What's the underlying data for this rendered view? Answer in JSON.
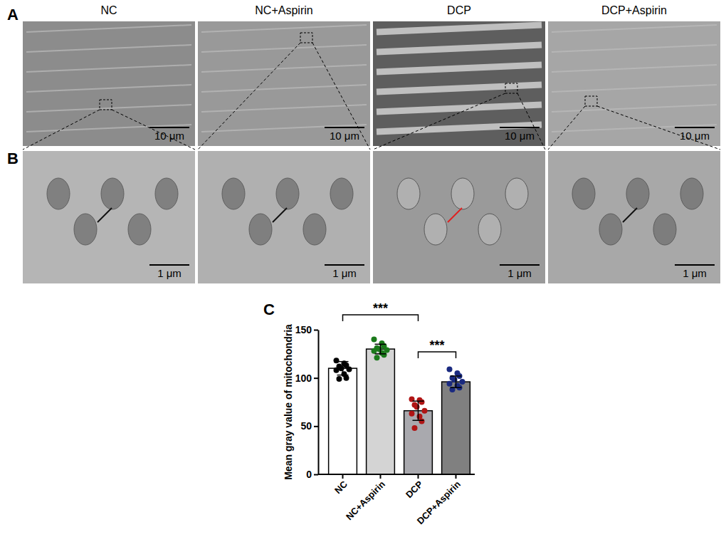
{
  "chart_data": {
    "type": "bar",
    "y_label": "Mean gray value of mitochondria",
    "categories": [
      "NC",
      "NC+Aspirin",
      "DCP",
      "DCP+Aspirin"
    ],
    "values": [
      110,
      130,
      66,
      96
    ],
    "errors": [
      7,
      5,
      10,
      6
    ],
    "points": [
      [
        118,
        115,
        113,
        112,
        110,
        109,
        108,
        104,
        100,
        99
      ],
      [
        140,
        136,
        133,
        131,
        130,
        129,
        128,
        126,
        124,
        121
      ],
      [
        78,
        77,
        75,
        72,
        70,
        66,
        63,
        60,
        55,
        48
      ],
      [
        109,
        105,
        102,
        100,
        98,
        96,
        94,
        92,
        90,
        88
      ]
    ],
    "colors": [
      "#ffffff",
      "#d4d4d4",
      "#a9a9ae",
      "#808080"
    ],
    "point_colors": [
      "#000000",
      "#1b7a1b",
      "#b01515",
      "#1a2a80"
    ],
    "ylim": [
      0,
      150
    ],
    "yticks": [
      0,
      50,
      100,
      150
    ],
    "annotations": [
      {
        "text": "***",
        "between": [
          "NC",
          "DCP"
        ]
      },
      {
        "text": "***",
        "between": [
          "DCP",
          "DCP+Aspirin"
        ]
      }
    ]
  },
  "figure": {
    "columns": [
      "NC",
      "NC+Aspirin",
      "DCP",
      "DCP+Aspirin"
    ],
    "panel_labels": [
      "A",
      "B",
      "C"
    ],
    "scale_bars": [
      "10 μm",
      "1 μm"
    ]
  }
}
